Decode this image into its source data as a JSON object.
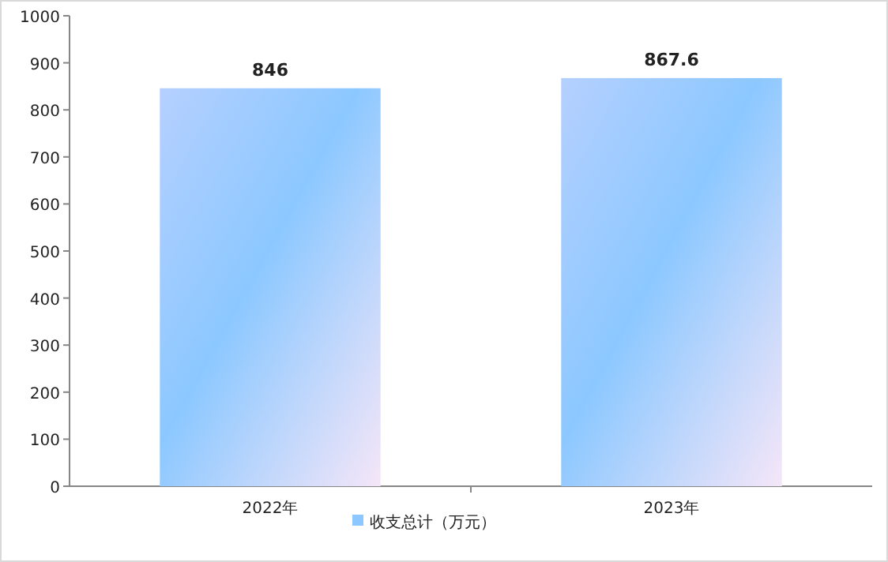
{
  "chart_data": {
    "type": "bar",
    "categories": [
      "2022年",
      "2023年"
    ],
    "series": [
      {
        "name": "收支总计（万元）",
        "color": "#8cc8ff",
        "values": [
          846,
          867.6
        ]
      }
    ],
    "ylim": [
      0,
      1000
    ],
    "yticks": [
      0,
      100,
      200,
      300,
      400,
      500,
      600,
      700,
      800,
      900,
      1000
    ],
    "data_labels": true,
    "legend": "bottom",
    "grid": false
  }
}
